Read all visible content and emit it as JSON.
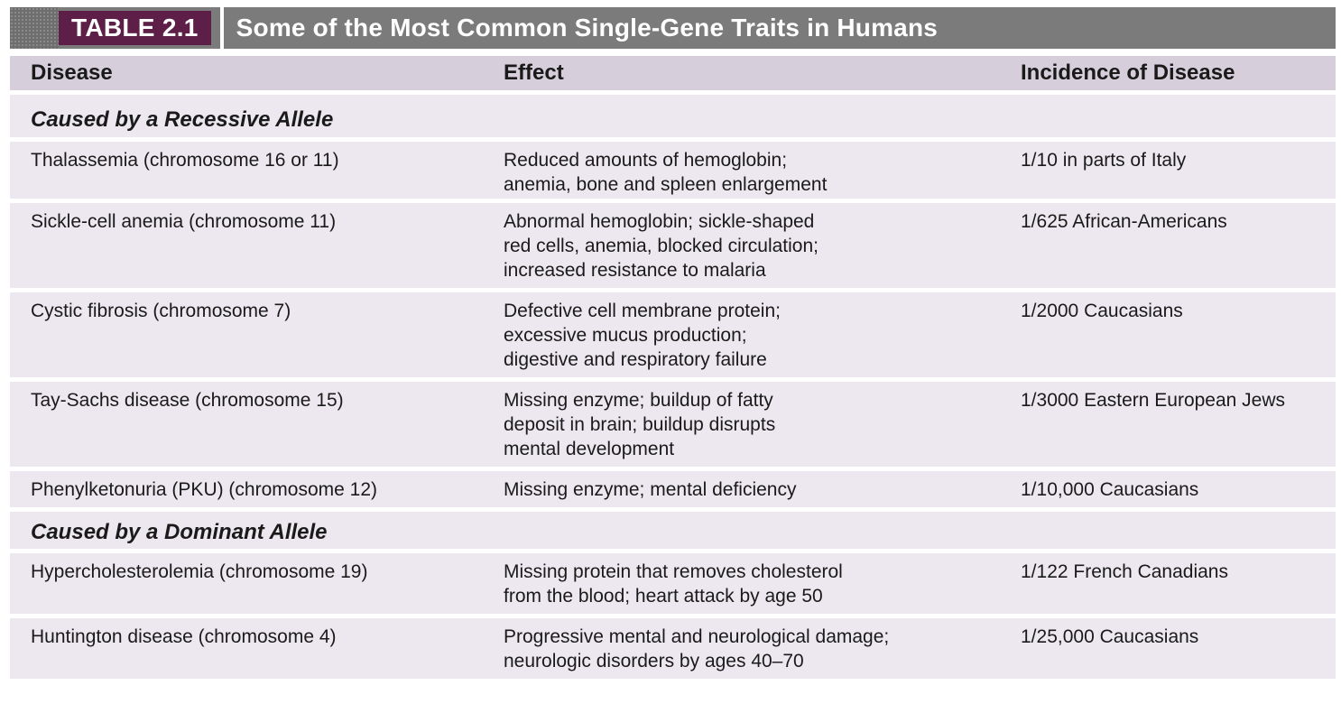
{
  "table": {
    "badge": "TABLE 2.1",
    "title": "Some of the Most Common Single-Gene Traits in Humans",
    "headers": {
      "disease": "Disease",
      "effect": "Effect",
      "incidence": "Incidence of Disease"
    },
    "sections": [
      {
        "label": "Caused by a Recessive Allele",
        "rows": [
          {
            "disease": "Thalassemia (chromosome 16 or 11)",
            "effect": [
              "Reduced amounts of hemoglobin;",
              "anemia, bone and spleen enlargement"
            ],
            "incidence": "1/10 in parts of Italy"
          },
          {
            "disease": "Sickle-cell anemia (chromosome 11)",
            "effect": [
              "Abnormal hemoglobin; sickle-shaped",
              "red cells, anemia, blocked circulation;",
              "increased resistance to malaria"
            ],
            "incidence": "1/625 African-Americans"
          },
          {
            "disease": "Cystic fibrosis (chromosome 7)",
            "effect": [
              "Defective cell membrane protein;",
              "excessive mucus production;",
              "digestive and respiratory failure"
            ],
            "incidence": "1/2000 Caucasians"
          },
          {
            "disease": "Tay-Sachs disease (chromosome 15)",
            "effect": [
              "Missing enzyme; buildup of fatty",
              "deposit in brain; buildup disrupts",
              "mental development"
            ],
            "incidence": "1/3000 Eastern European Jews"
          },
          {
            "disease": "Phenylketonuria (PKU) (chromosome 12)",
            "effect": [
              "Missing enzyme; mental deficiency"
            ],
            "incidence": "1/10,000 Caucasians"
          }
        ]
      },
      {
        "label": "Caused by a Dominant Allele",
        "rows": [
          {
            "disease": "Hypercholesterolemia (chromosome 19)",
            "effect": [
              "Missing protein that removes cholesterol",
              "from the blood; heart attack by age 50"
            ],
            "incidence": "1/122 French Canadians"
          },
          {
            "disease": "Huntington disease (chromosome 4)",
            "effect": [
              "Progressive mental and neurological damage;",
              "neurologic disorders by ages 40–70"
            ],
            "incidence": "1/25,000 Caucasians"
          }
        ]
      }
    ]
  }
}
